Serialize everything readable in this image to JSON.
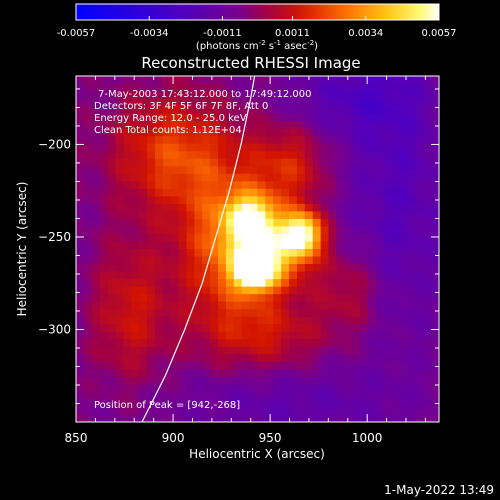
{
  "chart_data": {
    "type": "heatmap",
    "title": "Reconstructed RHESSI Image",
    "xlabel": "Heliocentric X (arcsec)",
    "ylabel": "Heliocentric Y (arcsec)",
    "xlim": [
      850,
      1037
    ],
    "ylim": [
      -350,
      -163
    ],
    "x_ticks": [
      850,
      900,
      950,
      1000
    ],
    "y_ticks": [
      -200,
      -250,
      -300
    ],
    "colorbar": {
      "ticks": [
        "-0.0057",
        "-0.0034",
        "-0.0011",
        "0.0011",
        "0.0034",
        "0.0057"
      ],
      "range": [
        -0.0057,
        0.0057
      ],
      "label_main": "(photons cm",
      "label_exp1": "-2",
      "label_mid1": " s",
      "label_exp2": "-1",
      "label_mid2": " asec",
      "label_exp3": "-2",
      "label_end": ")"
    },
    "annotations": {
      "time": "7-May-2003 17:43:12.000 to 17:49:12.000",
      "detectors": "Detectors: 3F 4F 5F 6F 7F 8F, Att 0",
      "energy": "Energy Range: 12.0 - 25.0 keV",
      "clean": "Clean     Total counts: 1.12E+04",
      "peak": "Position of Peak = [942,-268]"
    },
    "peak": [
      942,
      -268
    ],
    "limb_curve": [
      [
        884,
        -350
      ],
      [
        896,
        -325
      ],
      [
        906,
        -300
      ],
      [
        915,
        -275
      ],
      [
        922,
        -250
      ],
      [
        929,
        -225
      ],
      [
        935,
        -200
      ],
      [
        940,
        -175
      ],
      [
        942,
        -163
      ]
    ],
    "sources": [
      {
        "x": 942,
        "y": -268,
        "amp": 0.006,
        "sx": 7,
        "sy": 7
      },
      {
        "x": 967,
        "y": -248,
        "amp": 0.0052,
        "sx": 7,
        "sy": 8
      },
      {
        "x": 940,
        "y": -240,
        "amp": 0.0042,
        "sx": 9,
        "sy": 9
      },
      {
        "x": 952,
        "y": -258,
        "amp": 0.0038,
        "sx": 15,
        "sy": 13
      },
      {
        "x": 928,
        "y": -255,
        "amp": 0.003,
        "sx": 18,
        "sy": 30
      },
      {
        "x": 900,
        "y": -205,
        "amp": 0.0026,
        "sx": 22,
        "sy": 22
      },
      {
        "x": 960,
        "y": -212,
        "amp": 0.002,
        "sx": 14,
        "sy": 16
      },
      {
        "x": 948,
        "y": -302,
        "amp": 0.0016,
        "sx": 22,
        "sy": 14
      },
      {
        "x": 878,
        "y": -290,
        "amp": 0.0018,
        "sx": 14,
        "sy": 26
      },
      {
        "x": 992,
        "y": -280,
        "amp": 0.0014,
        "sx": 12,
        "sy": 16
      },
      {
        "x": 1015,
        "y": -225,
        "amp": -0.0014,
        "sx": 20,
        "sy": 60
      },
      {
        "x": 990,
        "y": -175,
        "amp": -0.0012,
        "sx": 25,
        "sy": 15
      },
      {
        "x": 960,
        "y": -340,
        "amp": -0.001,
        "sx": 40,
        "sy": 14
      }
    ],
    "grid": false,
    "footer_timestamp": "1-May-2022 13:49"
  }
}
